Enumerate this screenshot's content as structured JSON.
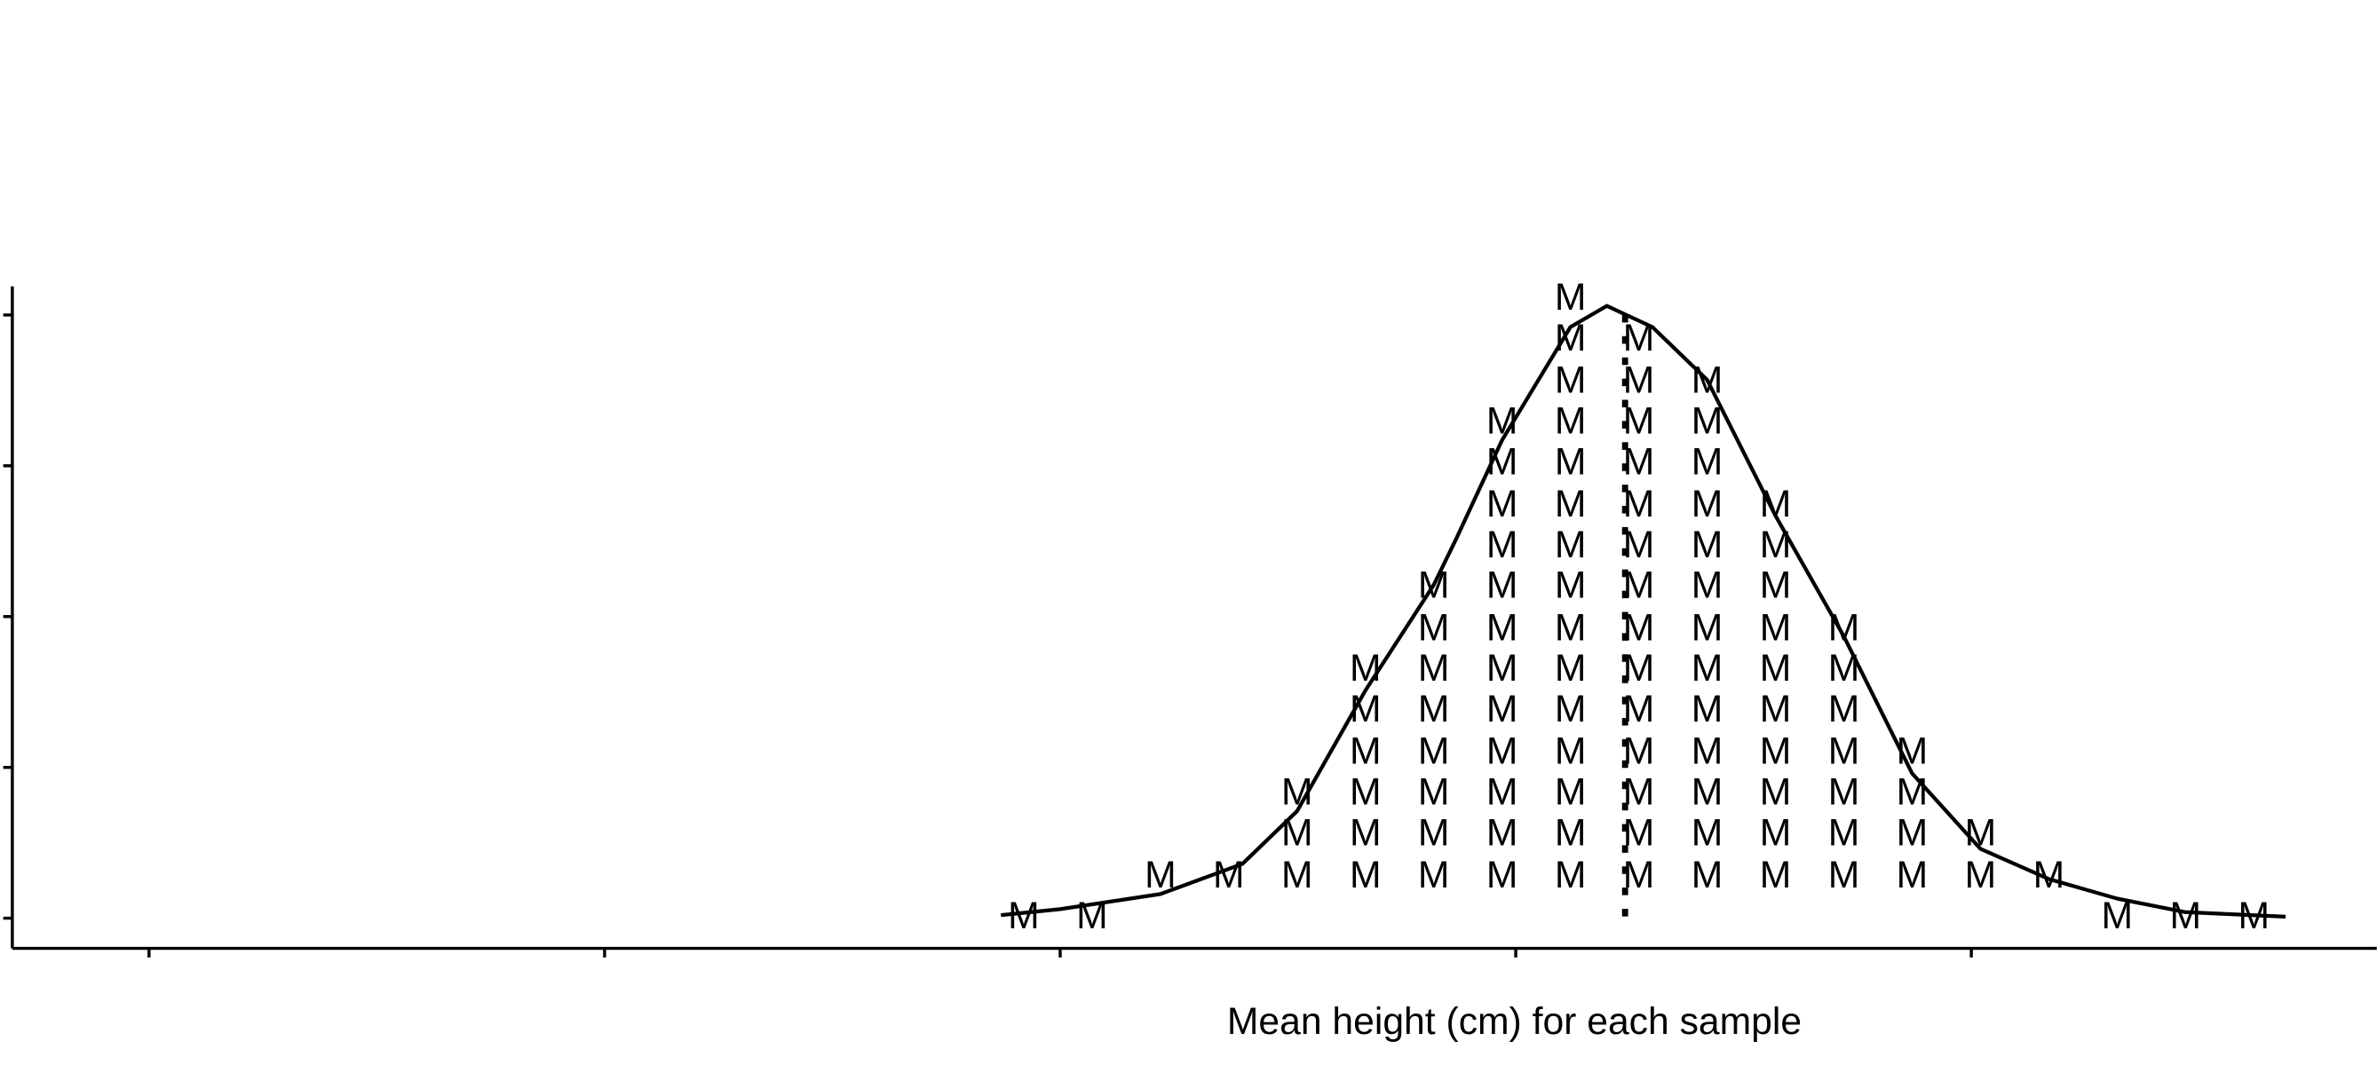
{
  "chart_data": {
    "type": "scatter",
    "x_label": "Mean height (cm) for each sample",
    "marker": "M",
    "xlim": [
      -0.3,
      4.89
    ],
    "ylim": [
      -0.2,
      4.19
    ],
    "xticks": [
      0,
      1,
      2,
      3,
      4
    ],
    "yticks": [
      0,
      1,
      2,
      3,
      4
    ],
    "color": "#000000",
    "points": {
      "x": [
        1.92,
        2.07,
        2.22,
        2.37,
        2.52,
        2.52,
        2.52,
        2.67,
        2.67,
        2.67,
        2.67,
        2.67,
        2.67,
        2.82,
        2.82,
        2.82,
        2.82,
        2.82,
        2.82,
        2.82,
        2.82,
        2.97,
        2.97,
        2.97,
        2.97,
        2.97,
        2.97,
        2.97,
        2.97,
        2.97,
        2.97,
        2.97,
        2.97,
        3.12,
        3.12,
        3.12,
        3.12,
        3.12,
        3.12,
        3.12,
        3.12,
        3.12,
        3.12,
        3.12,
        3.12,
        3.12,
        3.12,
        3.12,
        3.27,
        3.27,
        3.27,
        3.27,
        3.27,
        3.27,
        3.27,
        3.27,
        3.27,
        3.27,
        3.27,
        3.27,
        3.27,
        3.27,
        3.42,
        3.42,
        3.42,
        3.42,
        3.42,
        3.42,
        3.42,
        3.42,
        3.42,
        3.42,
        3.42,
        3.42,
        3.42,
        3.57,
        3.57,
        3.57,
        3.57,
        3.57,
        3.57,
        3.57,
        3.57,
        3.57,
        3.57,
        3.72,
        3.72,
        3.72,
        3.72,
        3.72,
        3.72,
        3.72,
        3.87,
        3.87,
        3.87,
        3.87,
        4.02,
        4.02,
        4.17,
        4.32,
        4.47,
        4.62
      ],
      "y": [
        0,
        0,
        0.27,
        0.27,
        0.27,
        0.55,
        0.82,
        0.27,
        0.55,
        0.82,
        1.09,
        1.37,
        1.64,
        0.27,
        0.55,
        0.82,
        1.09,
        1.37,
        1.64,
        1.91,
        2.19,
        0.27,
        0.55,
        0.82,
        1.09,
        1.37,
        1.64,
        1.91,
        2.19,
        2.46,
        2.73,
        3.01,
        3.28,
        0.27,
        0.55,
        0.82,
        1.09,
        1.37,
        1.64,
        1.91,
        2.19,
        2.46,
        2.73,
        3.01,
        3.28,
        3.55,
        3.83,
        4.1,
        0.27,
        0.55,
        0.82,
        1.09,
        1.37,
        1.64,
        1.91,
        2.19,
        2.46,
        2.73,
        3.01,
        3.28,
        3.55,
        3.83,
        0.27,
        0.55,
        0.82,
        1.09,
        1.37,
        1.64,
        1.91,
        2.19,
        2.46,
        2.73,
        3.01,
        3.28,
        3.55,
        0.27,
        0.55,
        0.82,
        1.09,
        1.37,
        1.64,
        1.91,
        2.19,
        2.46,
        2.73,
        0.27,
        0.55,
        0.82,
        1.09,
        1.37,
        1.64,
        1.91,
        0.27,
        0.55,
        0.82,
        1.09,
        0.27,
        0.55,
        0.27,
        0,
        0,
        0
      ]
    },
    "density": {
      "x": [
        1.87,
        2.0,
        2.22,
        2.4,
        2.52,
        2.67,
        2.82,
        2.87,
        2.97,
        3.12,
        3.2,
        3.3,
        3.42,
        3.57,
        3.72,
        3.87,
        4.02,
        4.17,
        4.32,
        4.47,
        4.69
      ],
      "y": [
        0.02,
        0.06,
        0.16,
        0.36,
        0.71,
        1.51,
        2.21,
        2.52,
        3.17,
        3.92,
        4.06,
        3.92,
        3.57,
        2.67,
        1.87,
        0.96,
        0.46,
        0.26,
        0.13,
        0.04,
        0.01
      ]
    },
    "mean": 3.24
  }
}
